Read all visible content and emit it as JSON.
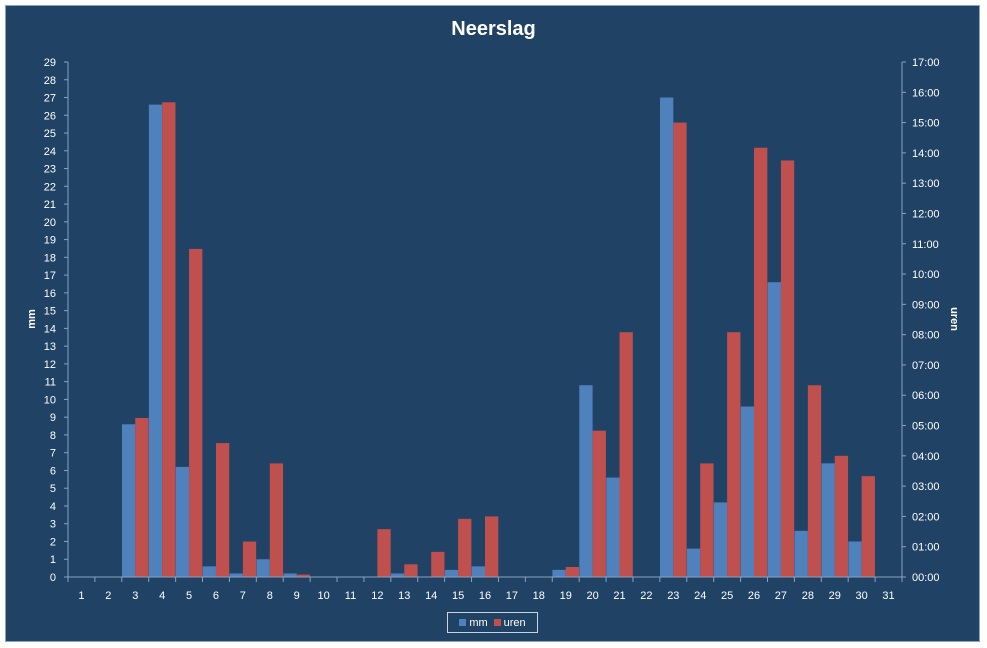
{
  "chart_data": {
    "type": "bar",
    "title": "Neerslag",
    "ylabel": "mm",
    "y2label": "uren",
    "categories": [
      "1",
      "2",
      "3",
      "4",
      "5",
      "6",
      "7",
      "8",
      "9",
      "10",
      "11",
      "12",
      "13",
      "14",
      "15",
      "16",
      "17",
      "18",
      "19",
      "20",
      "21",
      "22",
      "23",
      "24",
      "25",
      "26",
      "27",
      "28",
      "29",
      "30",
      "31"
    ],
    "ylim": [
      0,
      29
    ],
    "y2lim": [
      "00:00",
      "17:00"
    ],
    "y_ticks": [
      "0",
      "1",
      "2",
      "3",
      "4",
      "5",
      "6",
      "7",
      "8",
      "9",
      "10",
      "11",
      "12",
      "13",
      "14",
      "15",
      "16",
      "17",
      "18",
      "19",
      "20",
      "21",
      "22",
      "23",
      "24",
      "25",
      "26",
      "27",
      "28",
      "29"
    ],
    "y2_ticks": [
      "00:00",
      "01:00",
      "02:00",
      "03:00",
      "04:00",
      "05:00",
      "06:00",
      "07:00",
      "08:00",
      "09:00",
      "10:00",
      "11:00",
      "12:00",
      "13:00",
      "14:00",
      "15:00",
      "16:00",
      "17:00"
    ],
    "series": [
      {
        "name": "mm",
        "axis": "left",
        "color": "#4f81bd",
        "values": [
          0,
          0,
          8.6,
          26.6,
          6.2,
          0.6,
          0.2,
          1.0,
          0.2,
          0,
          0,
          0,
          0.2,
          0,
          0.4,
          0.6,
          0,
          0,
          0.4,
          10.8,
          5.6,
          0,
          27.0,
          1.6,
          4.2,
          9.6,
          16.6,
          2.6,
          6.4,
          2.0,
          0
        ]
      },
      {
        "name": "uren",
        "axis": "right",
        "unit": "hours",
        "color": "#c0504d",
        "values": [
          0,
          0,
          5.25,
          15.67,
          10.83,
          4.42,
          1.17,
          3.75,
          0.08,
          0,
          0,
          1.58,
          0.42,
          0.83,
          1.92,
          2.0,
          0,
          0,
          0.33,
          4.83,
          8.08,
          0,
          15.0,
          3.75,
          8.08,
          14.17,
          13.75,
          6.33,
          4.0,
          3.33,
          0
        ]
      }
    ],
    "legend": {
      "position": "bottom",
      "entries": [
        "mm",
        "uren"
      ]
    },
    "grid": false
  }
}
